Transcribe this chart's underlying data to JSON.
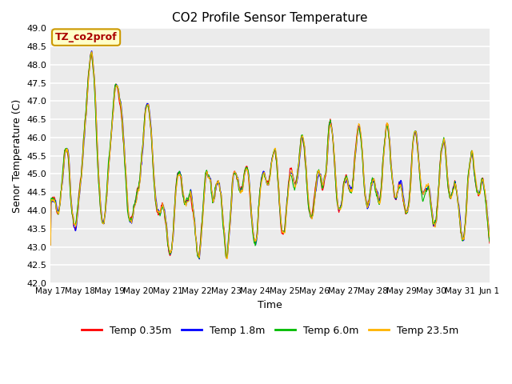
{
  "title": "CO2 Profile Sensor Temperature",
  "ylabel": "Senor Temperature (C)",
  "xlabel": "Time",
  "annotation": "TZ_co2prof",
  "ylim": [
    42.0,
    49.0
  ],
  "yticks": [
    42.0,
    42.5,
    43.0,
    43.5,
    44.0,
    44.5,
    45.0,
    45.5,
    46.0,
    46.5,
    47.0,
    47.5,
    48.0,
    48.5,
    49.0
  ],
  "xtick_labels": [
    "May 17",
    "May 18",
    "May 19",
    "May 20",
    "May 21",
    "May 22",
    "May 23",
    "May 24",
    "May 25",
    "May 26",
    "May 27",
    "May 28",
    "May 29",
    "May 30",
    "May 31",
    "Jun 1"
  ],
  "series_names": [
    "Temp 0.35m",
    "Temp 1.8m",
    "Temp 6.0m",
    "Temp 23.5m"
  ],
  "series_colors": [
    "#FF0000",
    "#0000FF",
    "#00BB00",
    "#FFB300"
  ],
  "bg_color": "#EBEBEB",
  "grid_color": "#FFFFFF",
  "annotation_bg": "#FFFFC8",
  "annotation_border": "#CC9900",
  "annotation_text_color": "#AA0000",
  "figsize": [
    6.4,
    4.8
  ],
  "dpi": 100,
  "n_points": 960,
  "seed": 7
}
